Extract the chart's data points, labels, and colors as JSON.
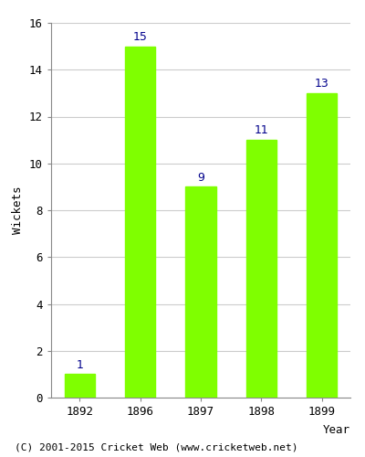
{
  "categories": [
    "1892",
    "1896",
    "1897",
    "1898",
    "1899"
  ],
  "values": [
    1,
    15,
    9,
    11,
    13
  ],
  "bar_color": "#7FFF00",
  "bar_edge_color": "#7FFF00",
  "xlabel": "Year",
  "ylabel": "Wickets",
  "ylim": [
    0,
    16
  ],
  "yticks": [
    0,
    2,
    4,
    6,
    8,
    10,
    12,
    14,
    16
  ],
  "label_color": "#00008B",
  "label_fontsize": 9,
  "axis_label_fontsize": 9,
  "tick_fontsize": 9,
  "background_color": "#ffffff",
  "grid_color": "#cccccc",
  "footer_text": "(C) 2001-2015 Cricket Web (www.cricketweb.net)",
  "footer_fontsize": 8,
  "bar_width": 0.5
}
